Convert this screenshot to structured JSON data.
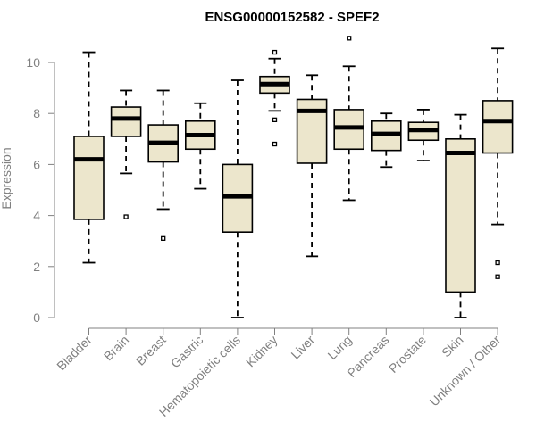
{
  "chart_data": {
    "type": "boxplot",
    "title": "ENSG00000152582 - SPEF2",
    "xlabel": "",
    "ylabel": "Expression",
    "ylim": [
      0,
      10.5
    ],
    "yticks": [
      0,
      2,
      4,
      6,
      8,
      10
    ],
    "categories": [
      "Bladder",
      "Brain",
      "Breast",
      "Gastric",
      "Hematopoietic cells",
      "Kidney",
      "Liver",
      "Lung",
      "Pancreas",
      "Prostate",
      "Skin",
      "Unknown / Other"
    ],
    "boxes": [
      {
        "label": "Bladder",
        "whislo": 2.15,
        "q1": 3.85,
        "med": 6.2,
        "q3": 7.1,
        "whishi": 10.4,
        "fliers": []
      },
      {
        "label": "Brain",
        "whislo": 5.65,
        "q1": 7.1,
        "med": 7.8,
        "q3": 8.25,
        "whishi": 8.9,
        "fliers": [
          3.95
        ]
      },
      {
        "label": "Breast",
        "whislo": 4.25,
        "q1": 6.1,
        "med": 6.85,
        "q3": 7.55,
        "whishi": 8.9,
        "fliers": [
          3.1
        ]
      },
      {
        "label": "Gastric",
        "whislo": 5.05,
        "q1": 6.6,
        "med": 7.15,
        "q3": 7.7,
        "whishi": 8.4,
        "fliers": []
      },
      {
        "label": "Hematopoietic cells",
        "whislo": 0.0,
        "q1": 3.35,
        "med": 4.75,
        "q3": 6.0,
        "whishi": 9.3,
        "fliers": []
      },
      {
        "label": "Kidney",
        "whislo": 8.1,
        "q1": 8.8,
        "med": 9.15,
        "q3": 9.45,
        "whishi": 10.15,
        "fliers": [
          10.4,
          7.75,
          6.8
        ]
      },
      {
        "label": "Liver",
        "whislo": 2.4,
        "q1": 6.05,
        "med": 8.1,
        "q3": 8.55,
        "whishi": 9.5,
        "fliers": []
      },
      {
        "label": "Lung",
        "whislo": 4.6,
        "q1": 6.6,
        "med": 7.45,
        "q3": 8.15,
        "whishi": 9.85,
        "fliers": [
          10.95
        ]
      },
      {
        "label": "Pancreas",
        "whislo": 5.9,
        "q1": 6.55,
        "med": 7.2,
        "q3": 7.7,
        "whishi": 8.0,
        "fliers": []
      },
      {
        "label": "Prostate",
        "whislo": 6.15,
        "q1": 6.95,
        "med": 7.35,
        "q3": 7.65,
        "whishi": 8.15,
        "fliers": []
      },
      {
        "label": "Skin",
        "whislo": 0.0,
        "q1": 1.0,
        "med": 6.45,
        "q3": 7.0,
        "whishi": 7.95,
        "fliers": []
      },
      {
        "label": "Unknown / Other",
        "whislo": 3.65,
        "q1": 6.45,
        "med": 7.7,
        "q3": 8.5,
        "whishi": 10.55,
        "fliers": [
          2.15,
          1.6
        ]
      }
    ],
    "colors": {
      "box_fill": "#ece6cc",
      "stroke": "#000000",
      "axis": "#808080"
    }
  }
}
